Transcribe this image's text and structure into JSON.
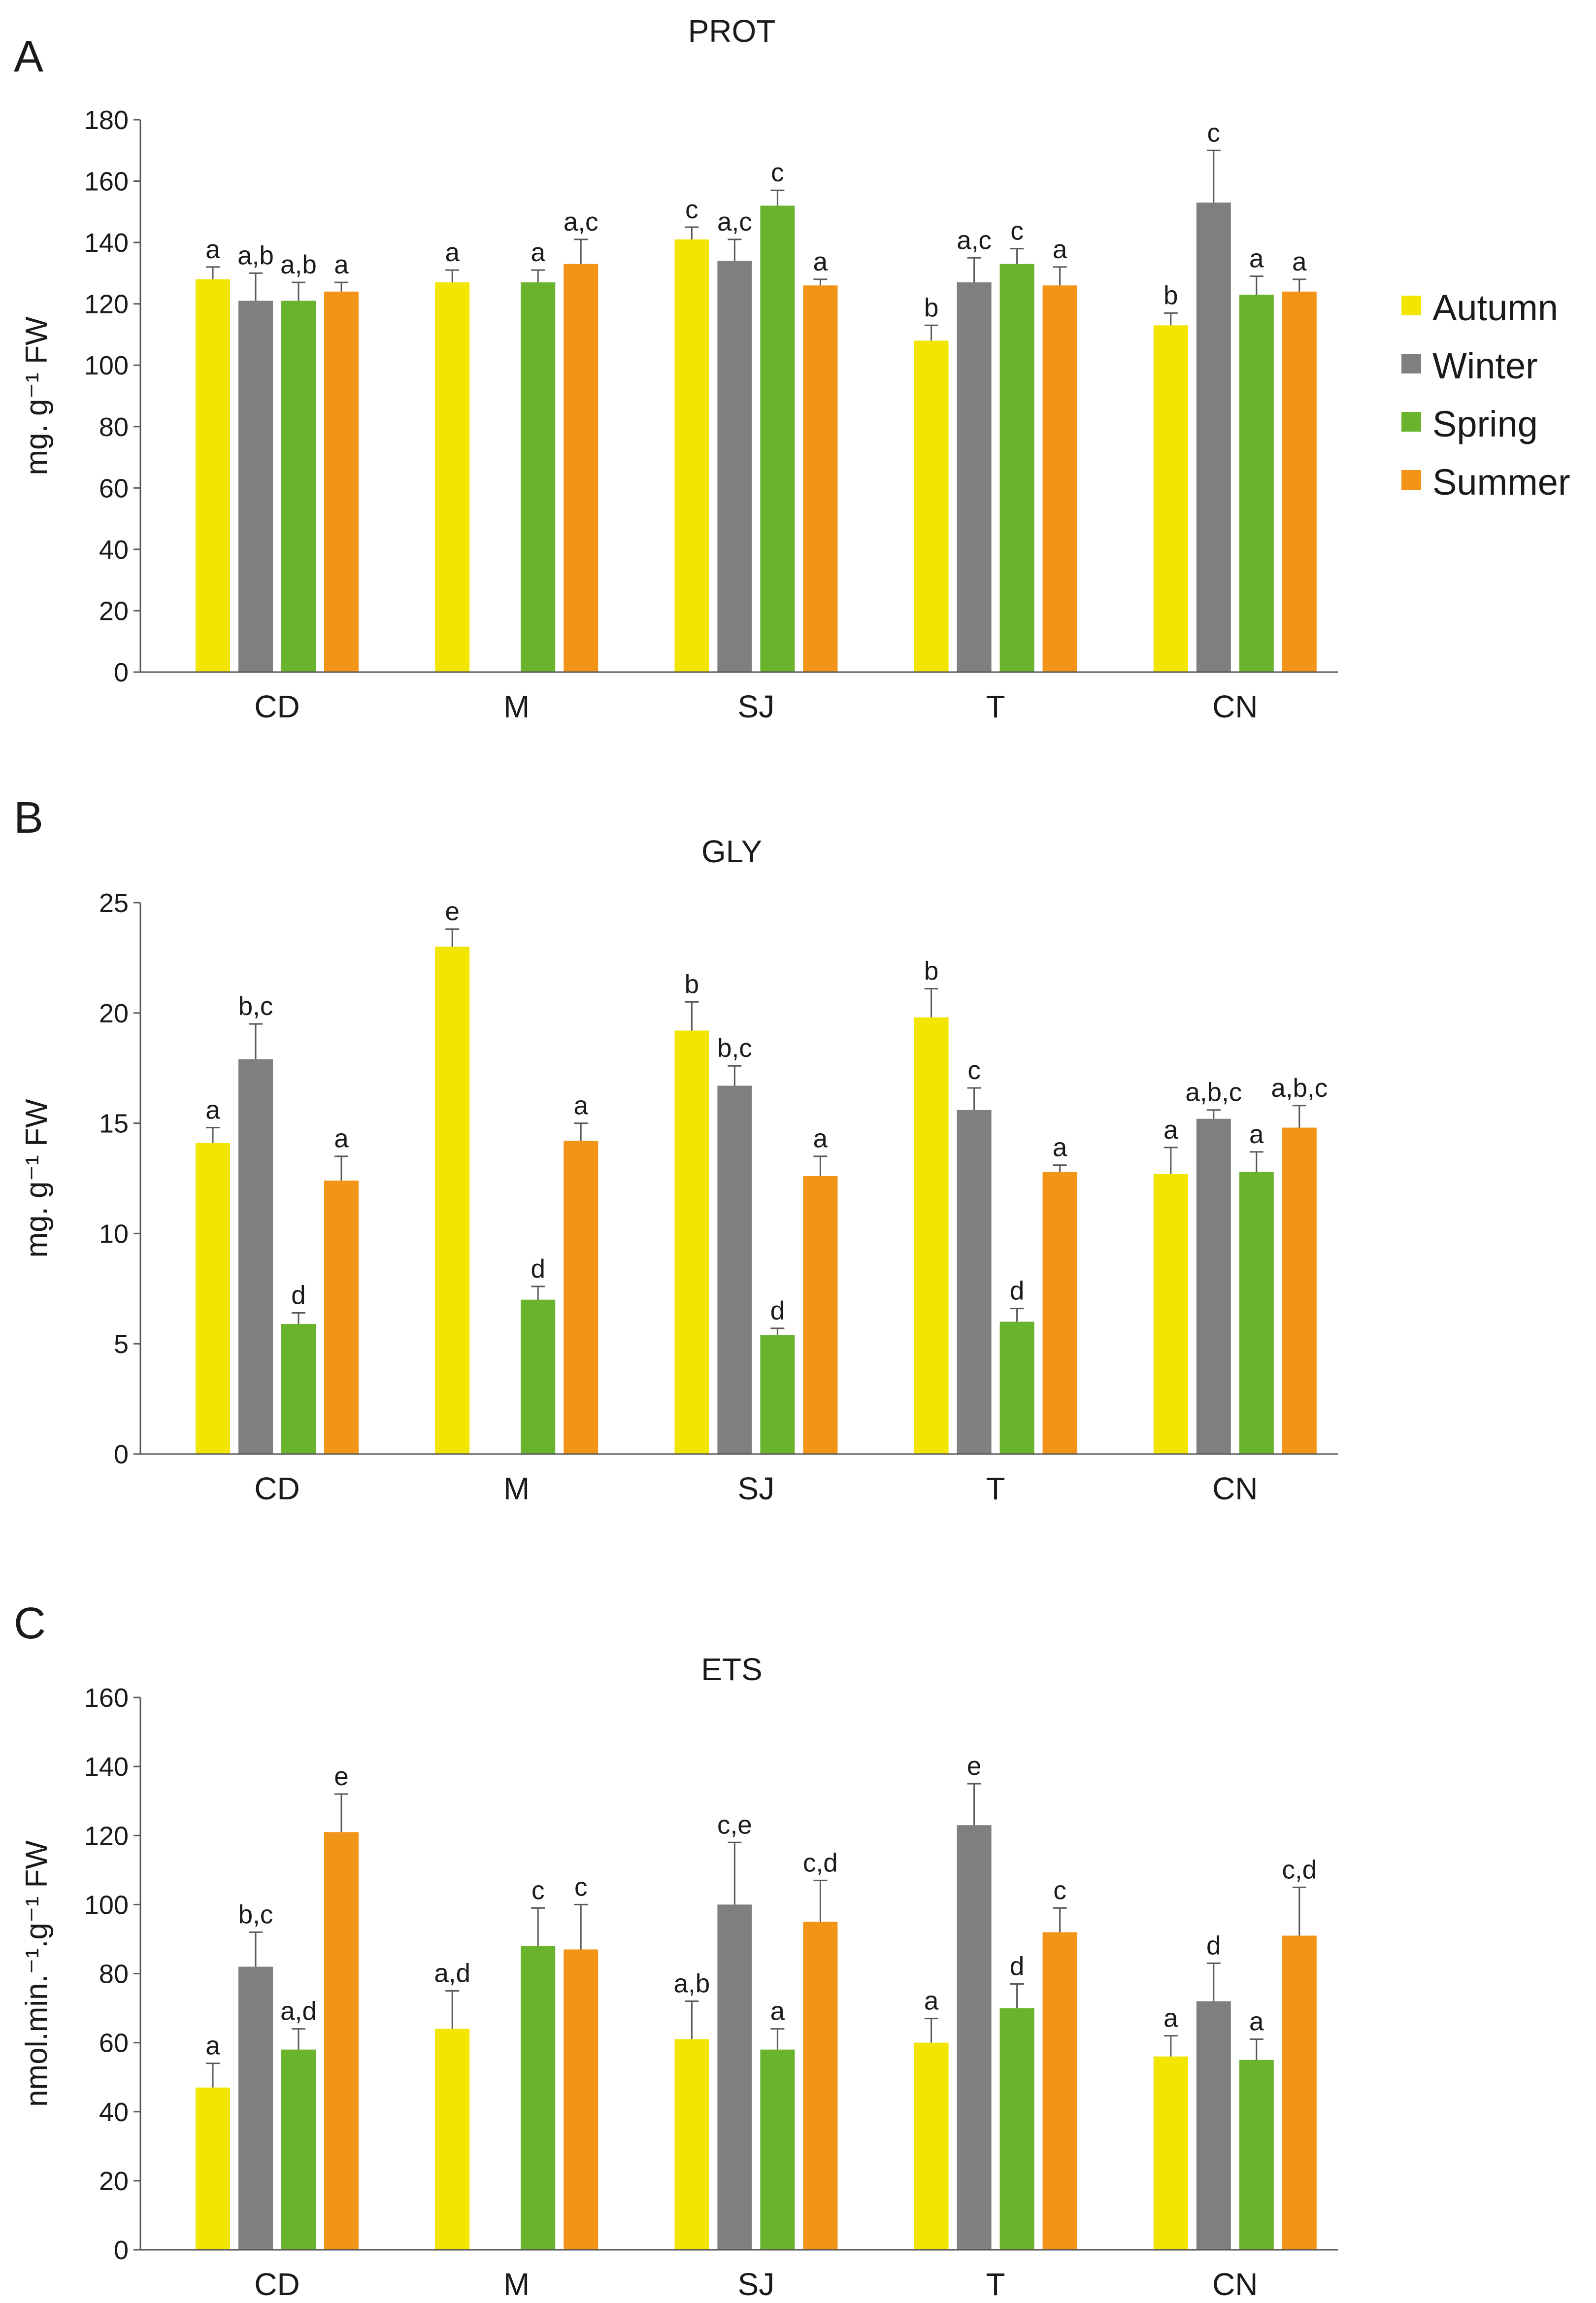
{
  "legend": {
    "entries": [
      {
        "name": "Autumn",
        "color": "#f2e500"
      },
      {
        "name": "Winter",
        "color": "#7f7f7f"
      },
      {
        "name": "Spring",
        "color": "#6ab42d"
      },
      {
        "name": "Summer",
        "color": "#f29418"
      }
    ]
  },
  "chart_data": [
    {
      "panel": "A",
      "type": "bar",
      "title": "PROT",
      "ylabel": "mg. g⁻¹ FW",
      "xlabel": "",
      "ylim": [
        0,
        180
      ],
      "yticks": [
        0,
        20,
        40,
        60,
        80,
        100,
        120,
        140,
        160,
        180
      ],
      "categories": [
        "CD",
        "M",
        "SJ",
        "T",
        "CN"
      ],
      "series": [
        {
          "name": "Autumn",
          "values": [
            128,
            127,
            141,
            108,
            113
          ],
          "errors": [
            4,
            4,
            4,
            5,
            4
          ],
          "labels": [
            "a",
            "a",
            "c",
            "b",
            "b"
          ]
        },
        {
          "name": "Winter",
          "values": [
            121,
            null,
            134,
            127,
            153
          ],
          "errors": [
            9,
            null,
            7,
            8,
            17
          ],
          "labels": [
            "a,b",
            "",
            "a,c",
            "a,c",
            "c"
          ]
        },
        {
          "name": "Spring",
          "values": [
            121,
            127,
            152,
            133,
            123
          ],
          "errors": [
            6,
            4,
            5,
            5,
            6
          ],
          "labels": [
            "a,b",
            "a",
            "c",
            "c",
            "a"
          ]
        },
        {
          "name": "Summer",
          "values": [
            124,
            133,
            126,
            126,
            124
          ],
          "errors": [
            3,
            8,
            2,
            6,
            4
          ],
          "labels": [
            "a",
            "a,c",
            "a",
            "a",
            "a"
          ]
        }
      ]
    },
    {
      "panel": "B",
      "type": "bar",
      "title": "GLY",
      "ylabel": "mg. g⁻¹ FW",
      "xlabel": "",
      "ylim": [
        0,
        25
      ],
      "yticks": [
        0,
        5,
        10,
        15,
        20,
        25
      ],
      "categories": [
        "CD",
        "M",
        "SJ",
        "T",
        "CN"
      ],
      "series": [
        {
          "name": "Autumn",
          "values": [
            14.1,
            23.0,
            19.2,
            19.8,
            12.7
          ],
          "errors": [
            0.7,
            0.8,
            1.3,
            1.3,
            1.2
          ],
          "labels": [
            "a",
            "e",
            "b",
            "b",
            "a"
          ]
        },
        {
          "name": "Winter",
          "values": [
            17.9,
            null,
            16.7,
            15.6,
            15.2
          ],
          "errors": [
            1.6,
            null,
            0.9,
            1.0,
            0.4
          ],
          "labels": [
            "b,c",
            "",
            "b,c",
            "c",
            "a,b,c"
          ]
        },
        {
          "name": "Spring",
          "values": [
            5.9,
            7.0,
            5.4,
            6.0,
            12.8
          ],
          "errors": [
            0.5,
            0.6,
            0.3,
            0.6,
            0.9
          ],
          "labels": [
            "d",
            "d",
            "d",
            "d",
            "a"
          ]
        },
        {
          "name": "Summer",
          "values": [
            12.4,
            14.2,
            12.6,
            12.8,
            14.8
          ],
          "errors": [
            1.1,
            0.8,
            0.9,
            0.3,
            1.0
          ],
          "labels": [
            "a",
            "a",
            "a",
            "a",
            "a,b,c"
          ]
        }
      ]
    },
    {
      "panel": "C",
      "type": "bar",
      "title": "ETS",
      "ylabel": "nmol.min.⁻¹.g⁻¹ FW",
      "xlabel": "",
      "ylim": [
        0,
        160
      ],
      "yticks": [
        0,
        20,
        40,
        60,
        80,
        100,
        120,
        140,
        160
      ],
      "categories": [
        "CD",
        "M",
        "SJ",
        "T",
        "CN"
      ],
      "series": [
        {
          "name": "Autumn",
          "values": [
            47,
            64,
            61,
            60,
            56
          ],
          "errors": [
            7,
            11,
            11,
            7,
            6
          ],
          "labels": [
            "a",
            "a,d",
            "a,b",
            "a",
            "a"
          ]
        },
        {
          "name": "Winter",
          "values": [
            82,
            null,
            100,
            123,
            72
          ],
          "errors": [
            10,
            null,
            18,
            12,
            11
          ],
          "labels": [
            "b,c",
            "",
            "c,e",
            "e",
            "d"
          ]
        },
        {
          "name": "Spring",
          "values": [
            58,
            88,
            58,
            70,
            55
          ],
          "errors": [
            6,
            11,
            6,
            7,
            6
          ],
          "labels": [
            "a,d",
            "c",
            "a",
            "d",
            "a"
          ]
        },
        {
          "name": "Summer",
          "values": [
            121,
            87,
            95,
            92,
            91
          ],
          "errors": [
            11,
            13,
            12,
            7,
            14
          ],
          "labels": [
            "e",
            "c",
            "c,d",
            "c",
            "c,d"
          ]
        }
      ]
    }
  ]
}
